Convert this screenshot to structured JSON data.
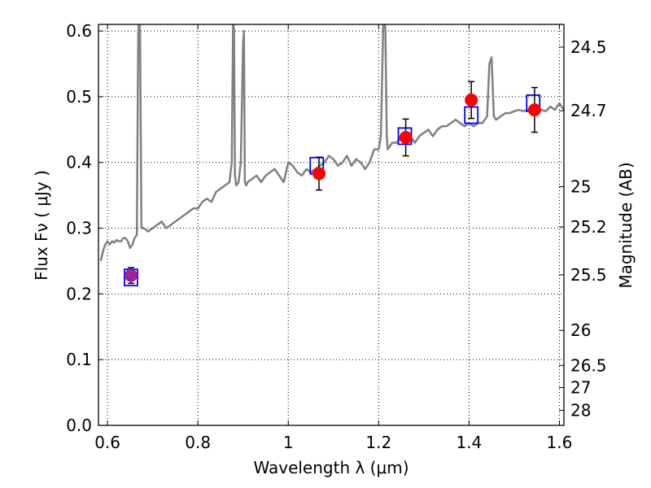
{
  "chart_data": {
    "type": "scatter",
    "xlabel": "Wavelength  λ (μm)",
    "ylabel": "Flux  Fν  ( μJy )",
    "ylabel_right": "Magnitude (AB)",
    "xlim": [
      0.58,
      1.61
    ],
    "ylim": [
      0.0,
      0.61
    ],
    "grid": true,
    "x_ticks": [
      0.6,
      0.8,
      1.0,
      1.2,
      1.4,
      1.6
    ],
    "x_tick_labels": [
      "0.6",
      "0.8",
      "1",
      "1.2",
      "1.4",
      "1.6"
    ],
    "y_ticks": [
      0.0,
      0.1,
      0.2,
      0.3,
      0.4,
      0.5,
      0.6
    ],
    "y_tick_labels": [
      "0.0",
      "0.1",
      "0.2",
      "0.3",
      "0.4",
      "0.5",
      "0.6"
    ],
    "right_ticks": [
      {
        "label": "24.5",
        "mag": 24.5
      },
      {
        "label": "24.7",
        "mag": 24.7
      },
      {
        "label": "25",
        "mag": 25.0
      },
      {
        "label": "25.2",
        "mag": 25.2
      },
      {
        "label": "25.5",
        "mag": 25.5
      },
      {
        "label": "26",
        "mag": 26.0
      },
      {
        "label": "26.5",
        "mag": 26.5
      },
      {
        "label": "27",
        "mag": 27.0
      },
      {
        "label": "28",
        "mag": 28.0
      }
    ],
    "colors": {
      "spectrum": "#808080",
      "observed": "#ff0000",
      "observed_first": "#a020a0",
      "model_box": "#0000ff",
      "errorbar": "#000000",
      "grid": "#000000"
    },
    "series": [
      {
        "kind": "spectrum",
        "x": [
          0.585,
          0.59,
          0.595,
          0.6,
          0.605,
          0.61,
          0.615,
          0.62,
          0.625,
          0.63,
          0.635,
          0.64,
          0.645,
          0.65,
          0.655,
          0.66,
          0.665,
          0.668,
          0.67,
          0.672,
          0.675,
          0.68,
          0.69,
          0.7,
          0.71,
          0.72,
          0.73,
          0.74,
          0.75,
          0.76,
          0.77,
          0.78,
          0.79,
          0.8,
          0.81,
          0.82,
          0.83,
          0.84,
          0.85,
          0.86,
          0.87,
          0.875,
          0.878,
          0.88,
          0.882,
          0.885,
          0.89,
          0.895,
          0.9,
          0.902,
          0.904,
          0.907,
          0.91,
          0.92,
          0.93,
          0.94,
          0.95,
          0.96,
          0.97,
          0.98,
          0.99,
          1.0,
          1.01,
          1.02,
          1.03,
          1.04,
          1.05,
          1.06,
          1.07,
          1.08,
          1.09,
          1.1,
          1.11,
          1.12,
          1.13,
          1.14,
          1.15,
          1.16,
          1.17,
          1.18,
          1.19,
          1.2,
          1.205,
          1.21,
          1.213,
          1.215,
          1.218,
          1.22,
          1.225,
          1.23,
          1.24,
          1.25,
          1.26,
          1.27,
          1.28,
          1.29,
          1.3,
          1.31,
          1.32,
          1.33,
          1.34,
          1.35,
          1.36,
          1.37,
          1.38,
          1.39,
          1.4,
          1.41,
          1.42,
          1.43,
          1.44,
          1.445,
          1.45,
          1.455,
          1.46,
          1.47,
          1.48,
          1.49,
          1.5,
          1.51,
          1.52,
          1.53,
          1.54,
          1.55,
          1.56,
          1.57,
          1.58,
          1.59,
          1.6,
          1.61
        ],
        "y": [
          0.25,
          0.265,
          0.275,
          0.28,
          0.275,
          0.28,
          0.278,
          0.282,
          0.28,
          0.28,
          0.285,
          0.285,
          0.28,
          0.27,
          0.275,
          0.285,
          0.29,
          0.6,
          0.62,
          0.6,
          0.3,
          0.3,
          0.295,
          0.3,
          0.305,
          0.31,
          0.3,
          0.305,
          0.31,
          0.315,
          0.32,
          0.325,
          0.33,
          0.33,
          0.34,
          0.345,
          0.34,
          0.355,
          0.36,
          0.365,
          0.37,
          0.4,
          0.62,
          0.6,
          0.38,
          0.365,
          0.37,
          0.4,
          0.58,
          0.6,
          0.37,
          0.365,
          0.37,
          0.375,
          0.38,
          0.37,
          0.38,
          0.385,
          0.39,
          0.38,
          0.37,
          0.4,
          0.395,
          0.385,
          0.38,
          0.39,
          0.385,
          0.39,
          0.395,
          0.4,
          0.41,
          0.405,
          0.395,
          0.4,
          0.41,
          0.395,
          0.405,
          0.4,
          0.39,
          0.4,
          0.42,
          0.42,
          0.44,
          0.61,
          0.62,
          0.6,
          0.44,
          0.42,
          0.425,
          0.43,
          0.43,
          0.44,
          0.435,
          0.44,
          0.43,
          0.44,
          0.445,
          0.45,
          0.44,
          0.45,
          0.455,
          0.455,
          0.46,
          0.465,
          0.46,
          0.455,
          0.46,
          0.455,
          0.46,
          0.46,
          0.47,
          0.55,
          0.56,
          0.47,
          0.465,
          0.47,
          0.475,
          0.475,
          0.478,
          0.48,
          0.478,
          0.48,
          0.482,
          0.485,
          0.48,
          0.478,
          0.485,
          0.48,
          0.49,
          0.48
        ]
      },
      {
        "kind": "model-boxes",
        "x": [
          0.652,
          1.063,
          1.258,
          1.405,
          1.542
        ],
        "y": [
          0.225,
          0.395,
          0.44,
          0.472,
          0.49
        ]
      },
      {
        "kind": "observed",
        "x": [
          0.652,
          1.068,
          1.26,
          1.405,
          1.545
        ],
        "y": [
          0.228,
          0.383,
          0.438,
          0.495,
          0.48
        ],
        "yerr": [
          0.012,
          0.025,
          0.028,
          0.028,
          0.034
        ]
      }
    ]
  }
}
